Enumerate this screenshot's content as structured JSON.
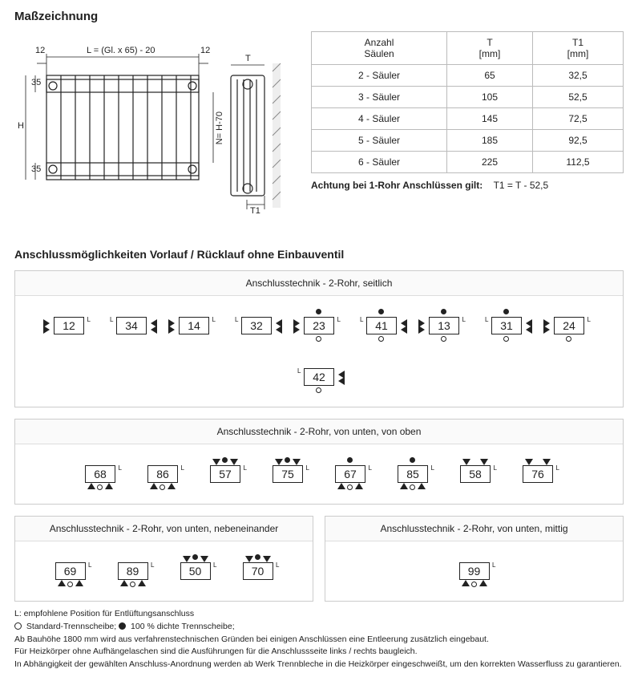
{
  "title": "Maßzeichnung",
  "drawing": {
    "label_L": "L = (Gl. x 65) - 20",
    "label_12a": "12",
    "label_12b": "12",
    "label_35a": "35",
    "label_35b": "35",
    "label_H": "H",
    "label_N": "N= H-70",
    "label_T": "T",
    "label_T1": "T1"
  },
  "table": {
    "headers": [
      "Anzahl\nSäulen",
      "T\n[mm]",
      "T1\n[mm]"
    ],
    "rows": [
      [
        "2 - Säuler",
        "65",
        "32,5"
      ],
      [
        "3 - Säuler",
        "105",
        "52,5"
      ],
      [
        "4 - Säuler",
        "145",
        "72,5"
      ],
      [
        "5 - Säuler",
        "185",
        "92,5"
      ],
      [
        "6 - Säuler",
        "225",
        "112,5"
      ]
    ]
  },
  "note": {
    "bold": "Achtung bei 1-Rohr Anschlüssen gilt:",
    "rest": "T1 = T - 52,5"
  },
  "section2_title": "Anschlussmöglichkeiten Vorlauf / Rücklauf ohne Einbauventil",
  "groups": [
    {
      "header": "Anschlusstechnik - 2-Rohr, seitlich",
      "items": [
        {
          "n": "12",
          "side": "left",
          "topdot": false,
          "botcirc": false
        },
        {
          "n": "34",
          "side": "right",
          "topdot": false,
          "botcirc": false
        },
        {
          "n": "14",
          "side": "left",
          "topdot": false,
          "botcirc": false
        },
        {
          "n": "32",
          "side": "right",
          "topdot": false,
          "botcirc": false
        },
        {
          "n": "23",
          "side": "left",
          "topdot": true,
          "botcirc": true
        },
        {
          "n": "41",
          "side": "right",
          "topdot": true,
          "botcirc": true
        },
        {
          "n": "13",
          "side": "left",
          "topdot": true,
          "botcirc": true
        },
        {
          "n": "31",
          "side": "right",
          "topdot": true,
          "botcirc": true
        },
        {
          "n": "24",
          "side": "left",
          "topdot": false,
          "botcirc": true
        },
        {
          "n": "42",
          "side": "right",
          "topdot": false,
          "botcirc": true
        }
      ]
    },
    {
      "header": "Anschlusstechnik - 2-Rohr, von unten, von oben",
      "items": [
        {
          "n": "68",
          "vert": "bot",
          "topdot": false,
          "botcirc": true
        },
        {
          "n": "86",
          "vert": "bot",
          "topdot": false,
          "botcirc": true
        },
        {
          "n": "57",
          "vert": "top",
          "topdot": true,
          "botcirc": false
        },
        {
          "n": "75",
          "vert": "top",
          "topdot": true,
          "botcirc": false
        },
        {
          "n": "67",
          "vert": "bot",
          "topdot": true,
          "botcirc": true
        },
        {
          "n": "85",
          "vert": "bot",
          "topdot": true,
          "botcirc": true
        },
        {
          "n": "58",
          "vert": "top",
          "topdot": false,
          "botcirc": false
        },
        {
          "n": "76",
          "vert": "top",
          "topdot": false,
          "botcirc": false
        }
      ]
    }
  ],
  "split": {
    "left": {
      "header": "Anschlusstechnik - 2-Rohr, von unten, nebeneinander",
      "items": [
        {
          "n": "69",
          "vert": "bot",
          "botcirc": true
        },
        {
          "n": "89",
          "vert": "bot",
          "botcirc": true
        },
        {
          "n": "50",
          "vert": "top",
          "topdot": true
        },
        {
          "n": "70",
          "vert": "top",
          "topdot": true
        }
      ]
    },
    "right": {
      "header": "Anschlusstechnik - 2-Rohr, von unten, mittig",
      "items": [
        {
          "n": "99",
          "vert": "bot",
          "botcirc": true
        }
      ]
    }
  },
  "footnotes": [
    "L: empfohlene Position für Entlüftungsanschluss",
    "Standard-Trennscheibe;   100 % dichte Trennscheibe;",
    "Ab Bauhöhe 1800 mm wird aus verfahrenstechnischen Gründen bei einigen Anschlüssen eine Entleerung zusätzlich eingebaut.",
    "Für Heizkörper ohne Aufhängelaschen sind die Ausführungen für die Anschlussseite links / rechts baugleich.",
    "In Abhängigkeit der gewählten Anschluss-Anordnung werden ab Werk Trennbleche in die Heizkörper eingeschweißt, um den korrekten Wasserfluss zu garantieren."
  ]
}
